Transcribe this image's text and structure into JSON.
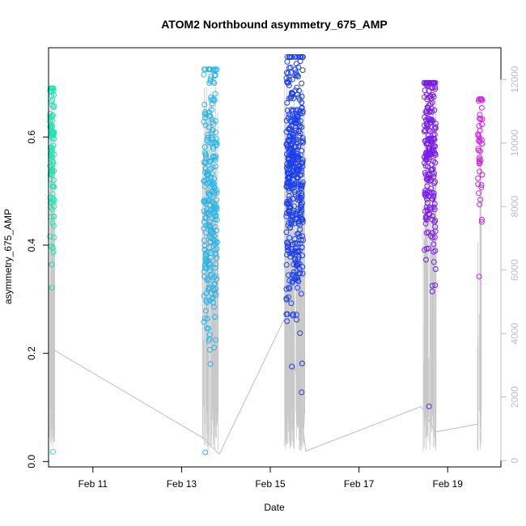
{
  "chart_data": {
    "type": "scatter",
    "title": "ATOM2 Northbound asymmetry_675_AMP",
    "xlabel": "Date",
    "ylabel": "asymmetry_675_AMP",
    "x_range_days": [
      10.0,
      20.2
    ],
    "ylim": [
      -0.01,
      0.765
    ],
    "y_ticks": [
      0.0,
      0.2,
      0.4,
      0.6
    ],
    "x_ticks": [
      {
        "day": 11,
        "label": "Feb 11"
      },
      {
        "day": 13,
        "label": "Feb 13"
      },
      {
        "day": 15,
        "label": "Feb 15"
      },
      {
        "day": 17,
        "label": "Feb 17"
      },
      {
        "day": 19,
        "label": "Feb 19"
      }
    ],
    "secondary_axis": {
      "ylim": [
        -200,
        13000
      ],
      "ticks": [
        0,
        2000,
        4000,
        6000,
        8000,
        10000,
        12000
      ],
      "color": "#bebebe"
    },
    "clusters": [
      {
        "center_day": 10.08,
        "spread_days": 0.1,
        "color": "#19e8b0",
        "count": 110,
        "y_min": 0.018,
        "y_max": 0.69,
        "y_mean": 0.575,
        "y_sd": 0.09
      },
      {
        "center_day": 13.65,
        "spread_days": 0.3,
        "color": "#2ab4e8",
        "count": 260,
        "y_min": 0.017,
        "y_max": 0.725,
        "y_mean": 0.47,
        "y_sd": 0.14
      },
      {
        "center_day": 15.55,
        "spread_days": 0.38,
        "color": "#1a3ef0",
        "count": 420,
        "y_min": 0.128,
        "y_max": 0.748,
        "y_mean": 0.53,
        "y_sd": 0.12
      },
      {
        "center_day": 18.6,
        "spread_days": 0.26,
        "color": "#7a1af0",
        "count": 220,
        "y_min": 0.102,
        "y_max": 0.7,
        "y_mean": 0.57,
        "y_sd": 0.09
      },
      {
        "center_day": 19.73,
        "spread_days": 0.1,
        "color": "#d21ee6",
        "count": 45,
        "y_min": 0.342,
        "y_max": 0.67,
        "y_mean": 0.58,
        "y_sd": 0.07
      }
    ],
    "gray_trace": [
      {
        "day": 10.1,
        "value": 3500
      },
      {
        "day": 13.5,
        "value": 700
      },
      {
        "day": 13.85,
        "value": 200
      },
      {
        "day": 15.4,
        "value": 4700
      },
      {
        "day": 15.8,
        "value": 300
      },
      {
        "day": 18.4,
        "value": 1700
      },
      {
        "day": 18.72,
        "value": 900
      },
      {
        "day": 19.7,
        "value": 1150
      }
    ]
  }
}
